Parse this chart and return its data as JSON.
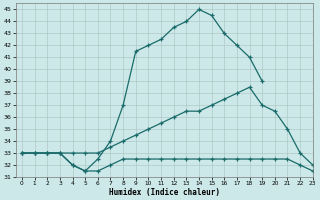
{
  "xlabel": "Humidex (Indice chaleur)",
  "bg_color": "#cde8e8",
  "grid_color": "#b0c8c8",
  "line_color": "#1a6b6b",
  "ylim": [
    31,
    45.5
  ],
  "xlim": [
    -0.5,
    23
  ],
  "yticks": [
    31,
    32,
    33,
    34,
    35,
    36,
    37,
    38,
    39,
    40,
    41,
    42,
    43,
    44,
    45
  ],
  "xticks": [
    0,
    1,
    2,
    3,
    4,
    5,
    6,
    7,
    8,
    9,
    10,
    11,
    12,
    13,
    14,
    15,
    16,
    17,
    18,
    19,
    20,
    21,
    22,
    23
  ],
  "curve1_x": [
    0,
    1,
    2,
    3,
    4,
    5,
    6,
    7,
    8,
    9,
    10,
    11,
    12,
    13,
    14,
    15,
    16,
    17,
    18,
    19
  ],
  "curve1_y": [
    33,
    33,
    33,
    33,
    32,
    31.5,
    32.5,
    34,
    37,
    41.5,
    42,
    42.5,
    43.5,
    44,
    45,
    44.5,
    43,
    42,
    41,
    39
  ],
  "curve2_x": [
    0,
    1,
    2,
    3,
    4,
    5,
    6,
    7,
    8,
    9,
    10,
    11,
    12,
    13,
    14,
    15,
    16,
    17,
    18,
    19,
    20,
    21,
    22,
    23
  ],
  "curve2_y": [
    33,
    33,
    33,
    33,
    33,
    33,
    33,
    33.5,
    34,
    34.5,
    35,
    35.5,
    36,
    36.5,
    36.5,
    37,
    37.5,
    38,
    38.5,
    37,
    36.5,
    35,
    33,
    32
  ],
  "curve3_x": [
    0,
    1,
    2,
    3,
    4,
    5,
    6,
    7,
    8,
    9,
    10,
    11,
    12,
    13,
    14,
    15,
    16,
    17,
    18,
    19,
    20,
    21,
    22,
    23
  ],
  "curve3_y": [
    33,
    33,
    33,
    33,
    32,
    31.5,
    31.5,
    32,
    32.5,
    32.5,
    32.5,
    32.5,
    32.5,
    32.5,
    32.5,
    32.5,
    32.5,
    32.5,
    32.5,
    32.5,
    32.5,
    32.5,
    32,
    31.5
  ]
}
